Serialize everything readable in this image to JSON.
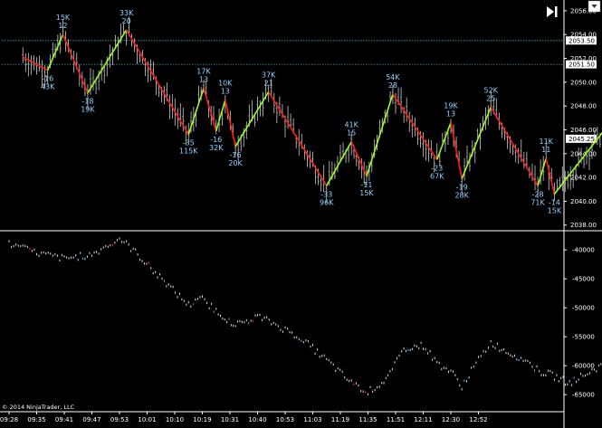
{
  "chart_data": [
    {
      "type": "line",
      "title": "",
      "y_axis_ticks": [
        "2056.00",
        "2054.00",
        "2052.00",
        "2050.00",
        "2048.00",
        "2046.00",
        "2044.00",
        "2042.00",
        "2040.00",
        "2038.00"
      ],
      "y_range": [
        2037.6,
        2056.6
      ],
      "time_labels": [
        "09:28",
        "09:35",
        "09:41",
        "09:47",
        "09:53",
        "10:01",
        "10:10",
        "10:19",
        "10:31",
        "10:40",
        "10:53",
        "11:03",
        "11:19",
        "11:35",
        "11:51",
        "12:11",
        "12:30",
        "12:52"
      ],
      "price_markers": [
        {
          "value": 2053.5,
          "label": "2053.50"
        },
        {
          "value": 2051.5,
          "label": "2051.50"
        },
        {
          "value": 2045.25,
          "label": "2045.25"
        }
      ],
      "zigzag": [
        {
          "x": 0.5,
          "y": 2052.1,
          "dir": "none"
        },
        {
          "x": 1.4,
          "y": 2051.0,
          "dir": "low",
          "top": "-16",
          "bottom": "43K"
        },
        {
          "x": 1.95,
          "y": 2054.0,
          "dir": "high",
          "top": "15K",
          "bottom": "12"
        },
        {
          "x": 2.85,
          "y": 2049.1,
          "dir": "low",
          "top": "-18",
          "bottom": "19K"
        },
        {
          "x": 4.25,
          "y": 2054.4,
          "dir": "high",
          "top": "33K",
          "bottom": "20"
        },
        {
          "x": 6.5,
          "y": 2045.6,
          "dir": "low",
          "top": "-35",
          "bottom": "115K"
        },
        {
          "x": 7.05,
          "y": 2049.5,
          "dir": "high",
          "top": "17K",
          "bottom": "13"
        },
        {
          "x": 7.5,
          "y": 2045.9,
          "dir": "low",
          "top": "-16",
          "bottom": "32K"
        },
        {
          "x": 7.83,
          "y": 2048.5,
          "dir": "high",
          "top": "10K",
          "bottom": "13"
        },
        {
          "x": 8.2,
          "y": 2044.6,
          "dir": "low",
          "top": "-16",
          "bottom": "20K"
        },
        {
          "x": 9.4,
          "y": 2049.2,
          "dir": "high",
          "top": "37K",
          "bottom": "21"
        },
        {
          "x": 11.5,
          "y": 2041.3,
          "dir": "low",
          "top": "-33",
          "bottom": "96K"
        },
        {
          "x": 12.4,
          "y": 2045.0,
          "dir": "high",
          "top": "41K",
          "bottom": "15"
        },
        {
          "x": 12.95,
          "y": 2042.1,
          "dir": "low",
          "top": "-11",
          "bottom": "15K"
        },
        {
          "x": 13.9,
          "y": 2049.0,
          "dir": "high",
          "top": "54K",
          "bottom": "28"
        },
        {
          "x": 15.5,
          "y": 2043.5,
          "dir": "low",
          "top": "-23",
          "bottom": "67K"
        },
        {
          "x": 16.0,
          "y": 2046.6,
          "dir": "high",
          "top": "19K",
          "bottom": "13"
        },
        {
          "x": 16.4,
          "y": 2041.9,
          "dir": "low",
          "top": "-19",
          "bottom": "28K"
        },
        {
          "x": 17.45,
          "y": 2047.9,
          "dir": "high",
          "top": "52K",
          "bottom": "25"
        },
        {
          "x": 19.15,
          "y": 2041.3,
          "dir": "low",
          "top": "-28",
          "bottom": "71K"
        },
        {
          "x": 19.45,
          "y": 2043.6,
          "dir": "high",
          "top": "11K",
          "bottom": "11"
        },
        {
          "x": 19.75,
          "y": 2040.6,
          "dir": "low",
          "top": "-14",
          "bottom": "15K"
        },
        {
          "x": 21.6,
          "y": 2046.1,
          "dir": "none"
        }
      ],
      "colors": {
        "up": "#9aff1a",
        "down": "#ff1a1a",
        "bars": "#c8c8c8",
        "labels": "#8fd4ff",
        "level_line": "#3ab0b0"
      }
    },
    {
      "type": "line",
      "title": "",
      "y_axis_ticks": [
        "-40000",
        "-45000",
        "-50000",
        "-55000",
        "-60000",
        "-65000"
      ],
      "y_range": [
        -67000,
        -37000
      ],
      "series": [
        {
          "x": [
            0.0,
            1.0,
            2.0,
            3.0,
            4.0,
            4.5,
            5.3,
            6.5,
            7.0,
            7.5,
            8.2,
            9.0,
            9.5,
            10.5,
            11.0,
            11.5,
            12.4,
            13.0,
            13.5,
            13.8,
            14.3,
            15.0,
            15.5,
            16.0,
            16.4,
            17.0,
            17.45,
            18.0,
            18.7,
            19.2,
            19.6,
            20.3,
            21.6
          ],
          "y": [
            -39000,
            -40500,
            -41500,
            -40800,
            -38000,
            -40000,
            -44000,
            -49500,
            -48500,
            -50500,
            -53000,
            -51500,
            -52500,
            -55000,
            -57000,
            -59000,
            -63000,
            -64500,
            -63000,
            -61500,
            -57000,
            -56500,
            -59500,
            -61000,
            -63500,
            -59000,
            -56000,
            -57500,
            -59000,
            -61000,
            -61500,
            -63000,
            -59500
          ]
        }
      ]
    }
  ],
  "ui": {
    "copyright": "© 2014 NinjaTrader, LLC"
  }
}
